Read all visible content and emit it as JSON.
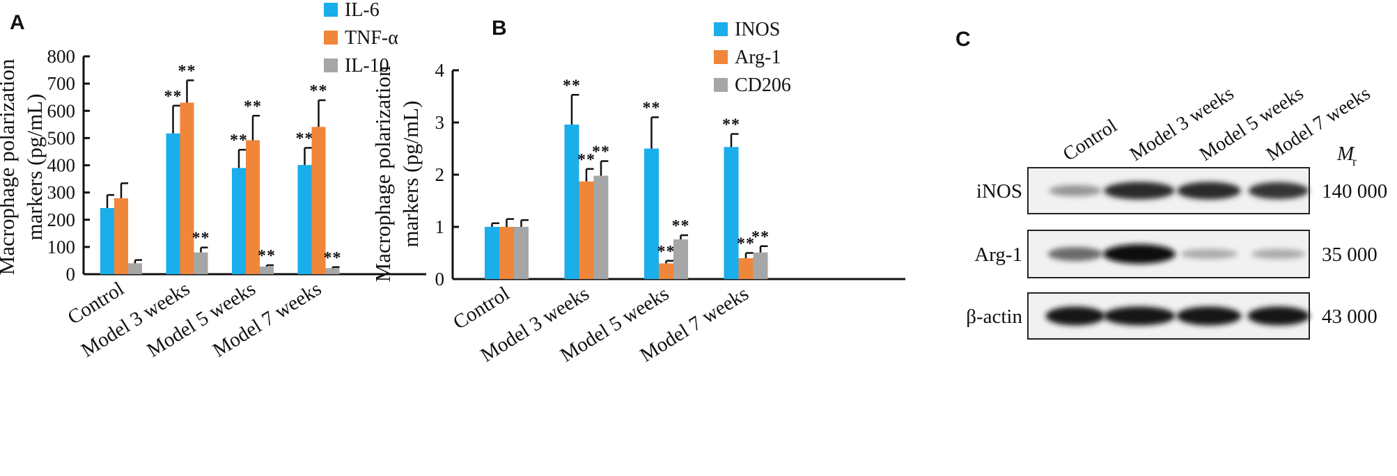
{
  "panels": {
    "A": {
      "letter": "A"
    },
    "B": {
      "letter": "B"
    },
    "C": {
      "letter": "C"
    }
  },
  "chart_data": [
    {
      "type": "bar",
      "panel": "A",
      "ylabel": [
        "Macrophage polarization",
        "markers (pg/mL)"
      ],
      "ylim": [
        0,
        800
      ],
      "yticks": [
        0,
        100,
        200,
        300,
        400,
        500,
        600,
        700,
        800
      ],
      "categories": [
        "Control",
        "Model 3 weeks",
        "Model 5 weeks",
        "Model 7 weeks"
      ],
      "legend_placement": "top",
      "series": [
        {
          "name": "IL-6",
          "color": "#1aaeea",
          "values": [
            243,
            517,
            390,
            401
          ],
          "errors": [
            48,
            102,
            67,
            63
          ],
          "sig": [
            "",
            "**",
            "**",
            "**"
          ]
        },
        {
          "name": "TNF-α",
          "color": "#f0863a",
          "values": [
            279,
            630,
            492,
            541
          ],
          "errors": [
            55,
            82,
            90,
            98
          ],
          "sig": [
            "",
            "**",
            "**",
            "**"
          ]
        },
        {
          "name": "IL-10",
          "color": "#a6a6a6",
          "values": [
            40,
            80,
            28,
            22
          ],
          "errors": [
            12,
            18,
            5,
            4
          ],
          "sig": [
            "",
            "**",
            "**",
            "**"
          ]
        }
      ]
    },
    {
      "type": "bar",
      "panel": "B",
      "ylabel": [
        "Macrophage polarization",
        "markers (pg/mL)"
      ],
      "ylim": [
        0,
        4
      ],
      "yticks": [
        0,
        1,
        2,
        3,
        4
      ],
      "categories": [
        "Control",
        "Model 3 weeks",
        "Model 5 weeks",
        "Model 7 weeks"
      ],
      "legend_placement": "top",
      "series": [
        {
          "name": "INOS",
          "color": "#1aaeea",
          "values": [
            1.0,
            2.96,
            2.5,
            2.53
          ],
          "errors": [
            0.07,
            0.57,
            0.6,
            0.25
          ],
          "sig": [
            "",
            "**",
            "**",
            "**"
          ]
        },
        {
          "name": "Arg-1",
          "color": "#f0863a",
          "values": [
            1.0,
            1.87,
            0.3,
            0.4
          ],
          "errors": [
            0.15,
            0.24,
            0.05,
            0.1
          ],
          "sig": [
            "",
            "**",
            "**",
            "**"
          ]
        },
        {
          "name": "CD206",
          "color": "#a6a6a6",
          "values": [
            1.0,
            1.98,
            0.76,
            0.51
          ],
          "errors": [
            0.13,
            0.28,
            0.08,
            0.12
          ],
          "sig": [
            "",
            "**",
            "**",
            "**"
          ]
        }
      ]
    }
  ],
  "western_blot": {
    "lanes": [
      "Control",
      "Model 3 weeks",
      "Model 5 weeks",
      "Model 7 weeks"
    ],
    "mr_label": "M",
    "mr_subscript": "r",
    "rows": [
      {
        "protein": "iNOS",
        "mr": "140 000",
        "intensity": [
          0.35,
          0.85,
          0.85,
          0.8
        ]
      },
      {
        "protein": "Arg-1",
        "mr": "35 000",
        "intensity": [
          0.55,
          1.0,
          0.25,
          0.25
        ]
      },
      {
        "protein": "β-actin",
        "mr": "43 000",
        "intensity": [
          0.95,
          0.95,
          0.95,
          0.95
        ]
      }
    ]
  }
}
